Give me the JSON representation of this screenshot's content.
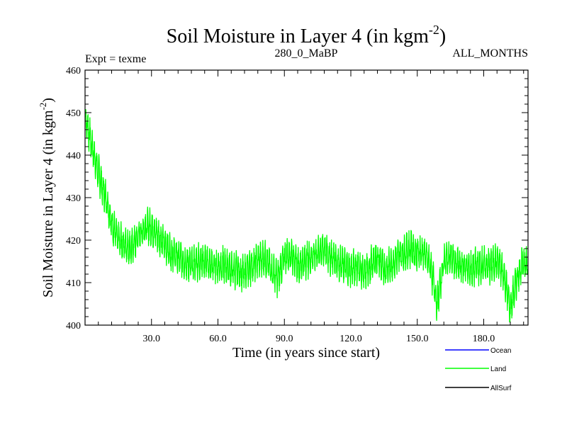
{
  "chart_data": {
    "type": "line",
    "title": "Soil Moisture in Layer 4 (in kgm",
    "title_superscript": "-2",
    "title_close": ")",
    "subtitle_left": "Expt = texme",
    "subtitle_center": "280_0_MaBP",
    "subtitle_right": "ALL_MONTHS",
    "xlabel": "Time (in years since start)",
    "ylabel": "Soil Moisture in Layer 4 (in kgm",
    "ylabel_superscript": "-2",
    "ylabel_close": ")",
    "xlim": [
      0,
      200
    ],
    "ylim": [
      400,
      460
    ],
    "xticks": [
      30,
      60,
      90,
      120,
      150,
      180
    ],
    "xtick_labels": [
      "30.0",
      "60.0",
      "90.0",
      "120.0",
      "150.0",
      "180.0"
    ],
    "yticks": [
      400,
      410,
      420,
      430,
      440,
      450,
      460
    ],
    "ytick_labels": [
      "400",
      "410",
      "420",
      "430",
      "440",
      "450",
      "460"
    ],
    "grid": false,
    "legend_position": "bottom-right",
    "series": [
      {
        "name": "Ocean",
        "color": "#0000ff",
        "values": []
      },
      {
        "name": "Land",
        "color": "#00ff00",
        "x": [
          0,
          2,
          4,
          6,
          8,
          10,
          12,
          15,
          18,
          21,
          24,
          27,
          30,
          33,
          36,
          39,
          42,
          45,
          48,
          51,
          54,
          57,
          60,
          63,
          66,
          69,
          72,
          75,
          78,
          81,
          84,
          87,
          90,
          93,
          96,
          99,
          102,
          105,
          108,
          111,
          114,
          117,
          120,
          123,
          126,
          129,
          132,
          135,
          138,
          141,
          144,
          147,
          150,
          153,
          156,
          159,
          162,
          165,
          168,
          171,
          174,
          177,
          180,
          183,
          186,
          189,
          192,
          195,
          198,
          200
        ],
        "values": [
          449,
          445,
          440,
          436,
          432,
          429,
          424,
          420,
          419,
          418,
          421,
          423,
          423,
          421,
          419,
          417,
          416,
          415,
          414,
          415,
          415,
          414,
          414,
          414,
          413,
          413,
          412,
          414,
          415,
          416,
          413,
          411,
          416,
          417,
          414,
          415,
          416,
          417,
          418,
          416,
          415,
          414,
          413,
          414,
          412,
          414,
          416,
          413,
          414,
          416,
          417,
          418,
          417,
          417,
          414,
          405,
          415,
          416,
          414,
          414,
          413,
          414,
          414,
          414,
          415,
          412,
          404,
          411,
          415,
          414
        ],
        "amplitude": 3
      },
      {
        "name": "AllSurf",
        "color": "#000000",
        "values": []
      }
    ]
  }
}
